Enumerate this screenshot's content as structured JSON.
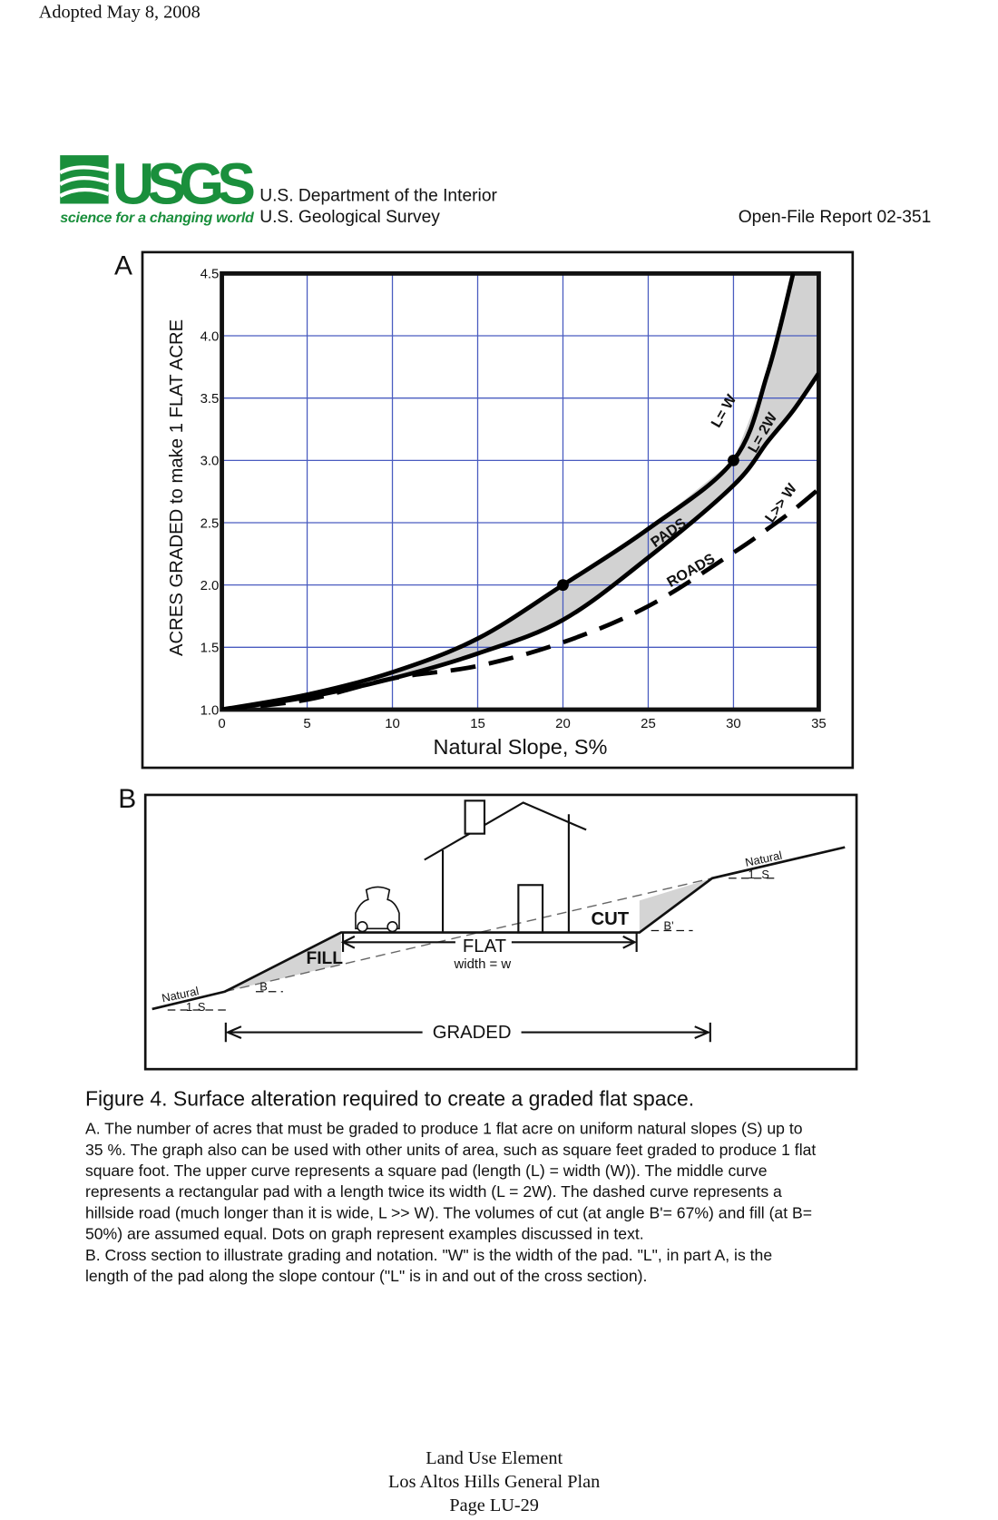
{
  "header": {
    "adopted": "Adopted May 8, 2008"
  },
  "logo": {
    "name": "USGS",
    "tagline": "science for a changing world",
    "department": "U.S. Department of the Interior",
    "survey": "U.S. Geological Survey",
    "report": "Open-File Report 02-351"
  },
  "chart_data": {
    "type": "line",
    "panel": "A",
    "ylabel": "ACRES GRADED to make 1 FLAT ACRE",
    "xlabel": "Natural Slope, S%",
    "x": [
      0,
      5,
      10,
      15,
      20,
      25,
      30,
      32,
      33.5,
      35
    ],
    "series": [
      {
        "name": "L= W",
        "color": "#000000",
        "values": [
          1.0,
          1.12,
          1.3,
          1.57,
          2.0,
          2.45,
          3.0,
          3.7,
          4.5,
          null
        ]
      },
      {
        "name": "L= 2W",
        "color": "#000000",
        "values": [
          1.0,
          1.1,
          1.25,
          1.45,
          1.72,
          2.22,
          2.8,
          3.15,
          3.4,
          3.7
        ]
      },
      {
        "name": "L>> W",
        "color": "#000000",
        "dashed": true,
        "values": [
          1.0,
          1.08,
          1.25,
          1.35,
          1.54,
          1.83,
          2.26,
          2.45,
          2.6,
          2.77
        ]
      }
    ],
    "dots": {
      "x": [
        20,
        30
      ],
      "values": [
        2.0,
        3.0
      ]
    },
    "annotations": [
      "PADS",
      "ROADS"
    ],
    "xlim": [
      0,
      35
    ],
    "ylim": [
      1.0,
      4.5
    ],
    "xticks": [
      0,
      5,
      10,
      15,
      20,
      25,
      30,
      35
    ],
    "yticks": [
      {
        "value": 1,
        "label": "1.0"
      },
      1.5,
      {
        "value": 2,
        "label": "2.0"
      },
      2.5,
      {
        "value": 3,
        "label": "3.0"
      },
      3.5,
      {
        "value": 4,
        "label": "4.0"
      },
      4.5
    ],
    "grid": true
  },
  "diagram": {
    "panel": "B",
    "natural_left": "Natural",
    "natural_right": "Natural",
    "slope_one": "1",
    "slope_s": "S",
    "angle_b": "B",
    "angle_b2": "B'",
    "fill": "FILL",
    "cut": "CUT",
    "flat": "FLAT",
    "width": "width = w",
    "graded": "GRADED"
  },
  "caption": {
    "title": "Figure 4. Surface alteration required to create a graded flat space.",
    "lines": [
      "A. The number of acres that must be graded to produce 1 flat acre on uniform natural slopes (S) up to",
      "35 %.  The graph also can be used with other units of area, such as square feet graded to produce 1 flat",
      "square foot.  The upper curve represents a square pad (length (L) = width (W)).  The middle curve",
      "represents a rectangular pad with a length twice its width (L = 2W).  The dashed curve represents a",
      "hillside road (much longer than it is wide, L >> W).  The volumes of cut (at angle B'= 67%) and fill (at B=",
      "50%) are assumed equal.  Dots on graph represent examples discussed in text.",
      "B. Cross section to illustrate grading and notation.  \"W\" is the width of the pad.  \"L\", in part A, is the",
      "length of the pad along the slope contour (\"L\" is in and out of the cross section)."
    ]
  },
  "footer": {
    "lines": [
      "Land Use Element",
      "Los Altos Hills General Plan",
      "Page LU-29"
    ]
  }
}
